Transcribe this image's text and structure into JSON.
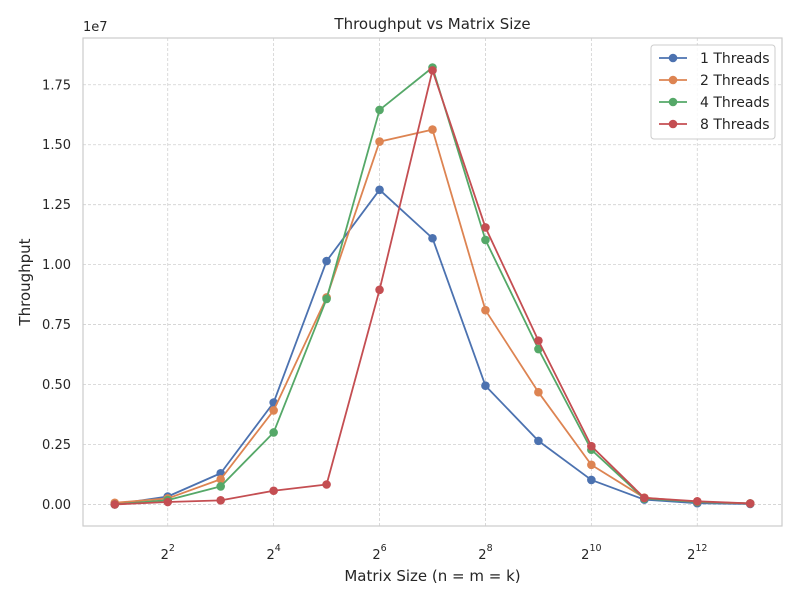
{
  "chart_data": {
    "type": "line",
    "title": "Throughput vs Matrix Size",
    "xlabel": "Matrix Size (n = m = k)",
    "ylabel": "Throughput",
    "y_offset_label": "1e7",
    "x_scale": "log2",
    "x_exponent_range": [
      0.4,
      13.6
    ],
    "ylim": [
      -0.09,
      1.945
    ],
    "x": [
      2,
      4,
      8,
      16,
      32,
      64,
      128,
      256,
      512,
      1024,
      2048,
      4096,
      8192
    ],
    "x_tick_base": "2",
    "x_tick_exponents": [
      "2",
      "4",
      "6",
      "8",
      "10",
      "12"
    ],
    "x_tick_values": [
      4,
      16,
      64,
      256,
      1024,
      4096
    ],
    "y_tick_labels": [
      "0.00",
      "0.25",
      "0.50",
      "0.75",
      "1.00",
      "1.25",
      "1.50",
      "1.75"
    ],
    "y_tick_values": [
      0.0,
      0.25,
      0.5,
      0.75,
      1.0,
      1.25,
      1.5,
      1.75
    ],
    "grid": true,
    "legend_position": "top-right",
    "series": [
      {
        "name": "1 Threads",
        "color": "#4c72b0",
        "values": [
          0.0,
          0.033,
          0.13,
          0.425,
          1.015,
          1.312,
          1.11,
          0.495,
          0.265,
          0.102,
          0.02,
          0.005,
          0.002
        ]
      },
      {
        "name": "2 Threads",
        "color": "#dd8452",
        "values": [
          0.007,
          0.025,
          0.105,
          0.392,
          0.863,
          1.513,
          1.563,
          0.81,
          0.468,
          0.165,
          0.028,
          0.01,
          0.004
        ]
      },
      {
        "name": "4 Threads",
        "color": "#55a868",
        "values": [
          0.0,
          0.018,
          0.075,
          0.3,
          0.857,
          1.645,
          1.822,
          1.103,
          0.648,
          0.228,
          0.024,
          0.01,
          0.004
        ]
      },
      {
        "name": "8 Threads",
        "color": "#c44e52",
        "values": [
          0.0,
          0.01,
          0.017,
          0.057,
          0.083,
          0.895,
          1.81,
          1.155,
          0.683,
          0.243,
          0.027,
          0.013,
          0.004
        ]
      }
    ]
  }
}
